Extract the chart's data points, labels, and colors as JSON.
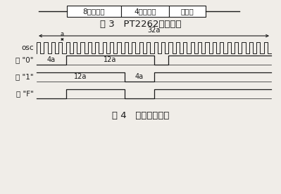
{
  "fig3_title": "图 3   PT2262编码信号",
  "fig4_title": "图 4   数据编码时序",
  "box_labels": [
    "8位地址码",
    "4位数据码",
    "同步码"
  ],
  "bg_color": "#f0ede8",
  "line_color": "#1a1a1a",
  "osc_label": "osc",
  "bit0_label": "位 \"0\"",
  "bit1_label": "位 \"1\"",
  "bitF_label": "位 \"F\"",
  "dim_32a": "32a",
  "dim_a": "a",
  "dim_4a_0": "4a",
  "dim_12a_0": "12a",
  "dim_12a_1": "12a",
  "dim_4a_1": "4a",
  "font_size_title": 9.5,
  "font_size_label": 7.5,
  "font_size_box": 7.5,
  "font_size_dim": 7
}
